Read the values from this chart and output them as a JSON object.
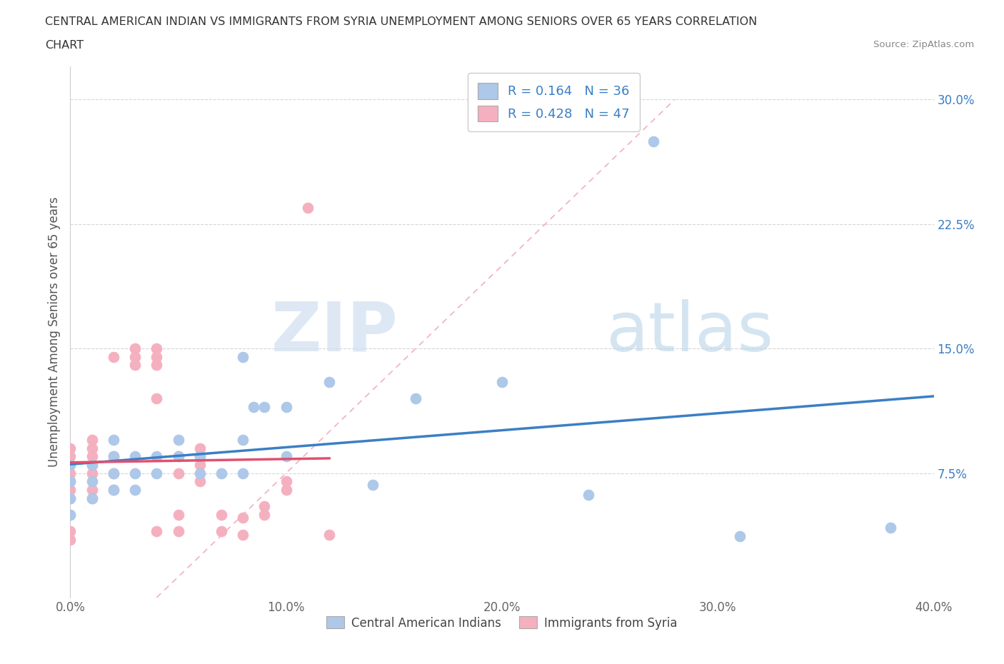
{
  "title_line1": "CENTRAL AMERICAN INDIAN VS IMMIGRANTS FROM SYRIA UNEMPLOYMENT AMONG SENIORS OVER 65 YEARS CORRELATION",
  "title_line2": "CHART",
  "source": "Source: ZipAtlas.com",
  "ylabel": "Unemployment Among Seniors over 65 years",
  "xlim": [
    0.0,
    0.4
  ],
  "ylim": [
    0.0,
    0.32
  ],
  "xticks": [
    0.0,
    0.1,
    0.2,
    0.3,
    0.4
  ],
  "yticks": [
    0.075,
    0.15,
    0.225,
    0.3
  ],
  "xticklabels": [
    "0.0%",
    "10.0%",
    "20.0%",
    "30.0%",
    "40.0%"
  ],
  "yticklabels": [
    "7.5%",
    "15.0%",
    "22.5%",
    "30.0%"
  ],
  "r_blue": 0.164,
  "n_blue": 36,
  "r_pink": 0.428,
  "n_pink": 47,
  "blue_color": "#adc8e8",
  "pink_color": "#f5b0bf",
  "trend_blue_color": "#3b7fc4",
  "trend_pink_color": "#e05070",
  "diag_color": "#f0b0c0",
  "watermark_zip": "ZIP",
  "watermark_atlas": "atlas",
  "legend_labels": [
    "Central American Indians",
    "Immigrants from Syria"
  ],
  "blue_scatter_x": [
    0.0,
    0.0,
    0.0,
    0.01,
    0.01,
    0.01,
    0.02,
    0.02,
    0.02,
    0.02,
    0.03,
    0.03,
    0.03,
    0.04,
    0.04,
    0.05,
    0.05,
    0.06,
    0.06,
    0.07,
    0.08,
    0.08,
    0.08,
    0.085,
    0.09,
    0.1,
    0.1,
    0.12,
    0.14,
    0.16,
    0.2,
    0.24,
    0.27,
    0.31,
    0.38,
    0.0
  ],
  "blue_scatter_y": [
    0.06,
    0.07,
    0.08,
    0.06,
    0.07,
    0.08,
    0.065,
    0.075,
    0.085,
    0.095,
    0.065,
    0.075,
    0.085,
    0.075,
    0.085,
    0.085,
    0.095,
    0.075,
    0.085,
    0.075,
    0.075,
    0.095,
    0.145,
    0.115,
    0.115,
    0.085,
    0.115,
    0.13,
    0.068,
    0.12,
    0.13,
    0.062,
    0.275,
    0.037,
    0.042,
    0.05
  ],
  "pink_scatter_x": [
    0.0,
    0.0,
    0.0,
    0.0,
    0.0,
    0.0,
    0.0,
    0.0,
    0.0,
    0.0,
    0.01,
    0.01,
    0.01,
    0.01,
    0.01,
    0.01,
    0.01,
    0.02,
    0.02,
    0.02,
    0.02,
    0.03,
    0.03,
    0.03,
    0.04,
    0.04,
    0.04,
    0.04,
    0.04,
    0.05,
    0.05,
    0.05,
    0.05,
    0.06,
    0.06,
    0.06,
    0.06,
    0.07,
    0.07,
    0.08,
    0.08,
    0.09,
    0.09,
    0.1,
    0.1,
    0.11,
    0.12
  ],
  "pink_scatter_y": [
    0.06,
    0.065,
    0.07,
    0.075,
    0.08,
    0.085,
    0.09,
    0.04,
    0.035,
    0.05,
    0.06,
    0.065,
    0.075,
    0.08,
    0.085,
    0.09,
    0.095,
    0.065,
    0.075,
    0.085,
    0.145,
    0.14,
    0.145,
    0.15,
    0.12,
    0.14,
    0.145,
    0.15,
    0.04,
    0.04,
    0.05,
    0.075,
    0.085,
    0.07,
    0.08,
    0.085,
    0.09,
    0.04,
    0.05,
    0.038,
    0.048,
    0.05,
    0.055,
    0.065,
    0.07,
    0.235,
    0.038
  ]
}
